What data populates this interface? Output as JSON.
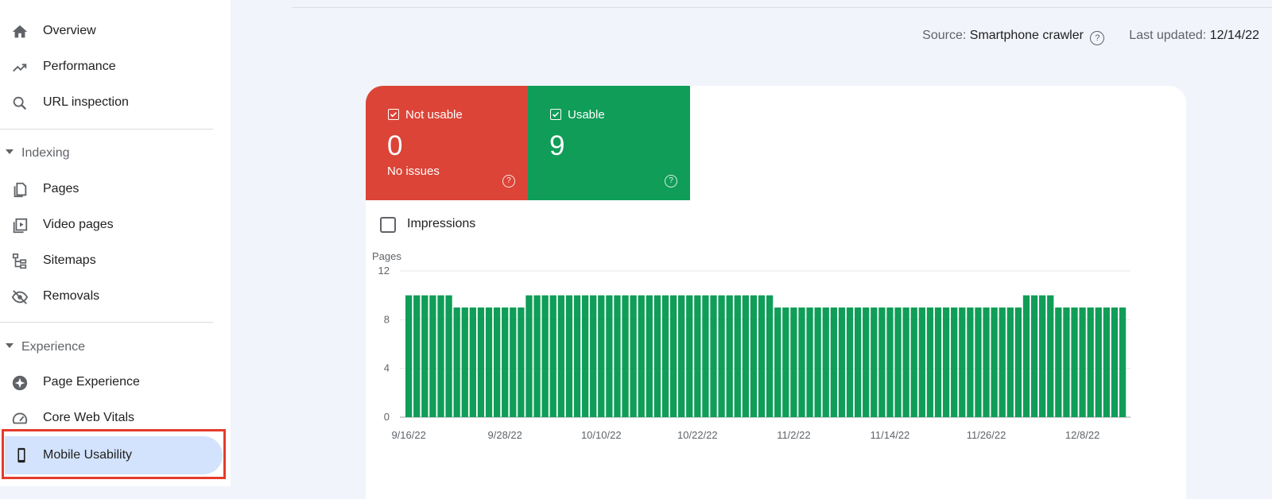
{
  "sidebar": {
    "items": [
      {
        "label": "Overview",
        "icon": "home-icon"
      },
      {
        "label": "Performance",
        "icon": "trending-up-icon"
      },
      {
        "label": "URL inspection",
        "icon": "search-icon"
      },
      {
        "label": "Pages",
        "icon": "pages-icon"
      },
      {
        "label": "Video pages",
        "icon": "video-pages-icon"
      },
      {
        "label": "Sitemaps",
        "icon": "sitemap-icon"
      },
      {
        "label": "Removals",
        "icon": "eye-off-icon"
      },
      {
        "label": "Page Experience",
        "icon": "page-experience-icon"
      },
      {
        "label": "Core Web Vitals",
        "icon": "speedometer-icon"
      },
      {
        "label": "Mobile Usability",
        "icon": "smartphone-icon",
        "selected": true
      }
    ],
    "sections": {
      "indexing": "Indexing",
      "experience": "Experience"
    }
  },
  "header": {
    "source_label": "Source:",
    "source_value": "Smartphone crawler",
    "updated_label": "Last updated:",
    "updated_value": "12/14/22"
  },
  "tiles": {
    "not_usable": {
      "label": "Not usable",
      "count": "0",
      "sub": "No issues",
      "color": "#db4437"
    },
    "usable": {
      "label": "Usable",
      "count": "9",
      "color": "#0f9d58"
    }
  },
  "impressions_label": "Impressions",
  "chart_data": {
    "type": "bar",
    "ylabel": "Pages",
    "ylim": [
      0,
      12
    ],
    "yticks": [
      0,
      4,
      8,
      12
    ],
    "x_tick_labels": [
      "9/16/22",
      "9/28/22",
      "10/10/22",
      "10/22/22",
      "11/2/22",
      "11/14/22",
      "11/26/22",
      "12/8/22"
    ],
    "series": [
      {
        "color": "#0f9d58",
        "values": [
          10,
          10,
          10,
          10,
          10,
          10,
          9,
          9,
          9,
          9,
          9,
          9,
          9,
          9,
          9,
          10,
          10,
          10,
          10,
          10,
          10,
          10,
          10,
          10,
          10,
          10,
          10,
          10,
          10,
          10,
          10,
          10,
          10,
          10,
          10,
          10,
          10,
          10,
          10,
          10,
          10,
          10,
          10,
          10,
          10,
          10,
          9,
          9,
          9,
          9,
          9,
          9,
          9,
          9,
          9,
          9,
          9,
          9,
          9,
          9,
          9,
          9,
          9,
          9,
          9,
          9,
          9,
          9,
          9,
          9,
          9,
          9,
          9,
          9,
          9,
          9,
          9,
          10,
          10,
          10,
          10,
          9,
          9,
          9,
          9,
          9,
          9,
          9,
          9,
          9
        ]
      }
    ],
    "grid": true
  }
}
